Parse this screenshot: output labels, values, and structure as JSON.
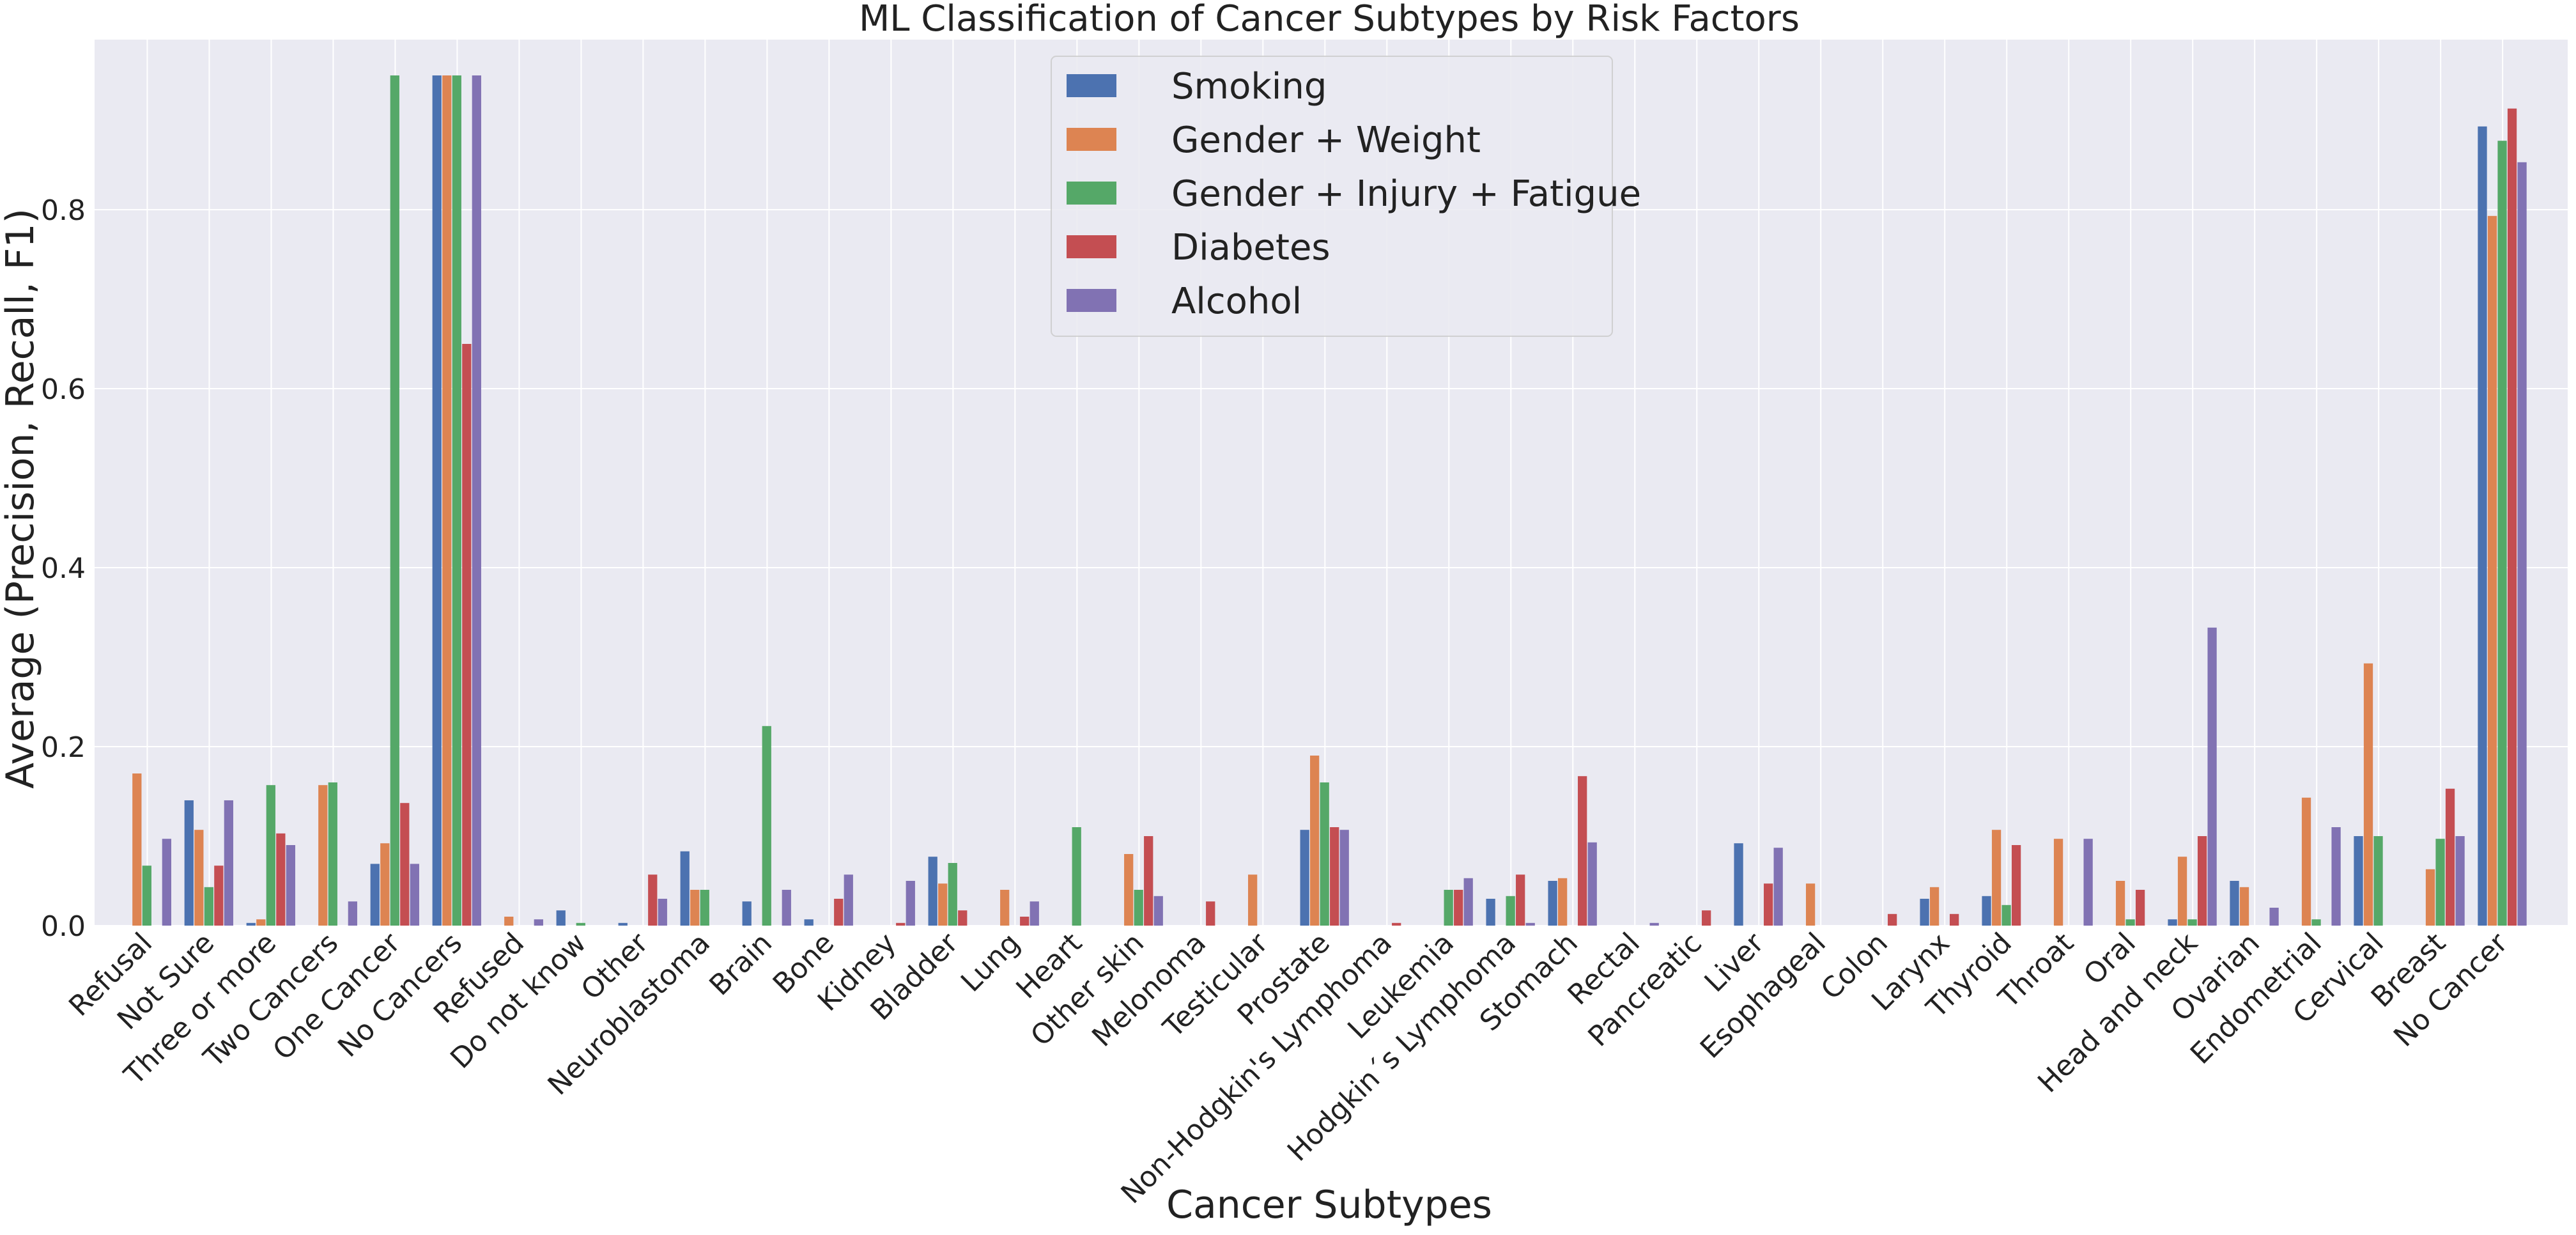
{
  "chart_data": {
    "type": "bar",
    "title": "ML Classification of Cancer Subtypes by Risk Factors",
    "xlabel": "Cancer Subtypes",
    "ylabel": "Average (Precision, Recall, F1)",
    "ylim": [
      0,
      0.99
    ],
    "yticks": [
      "0.0",
      "0.2",
      "0.4",
      "0.6",
      "0.8"
    ],
    "grid": true,
    "legend_position": "top-center",
    "background_color": "#eaeaf2",
    "categories": [
      "Refusal",
      "Not Sure",
      "Three or more",
      "Two Cancers",
      "One Cancer",
      "No Cancers",
      "Refused",
      "Do not know",
      "Other",
      "Neuroblastoma",
      "Brain",
      "Bone",
      "Kidney",
      "Bladder",
      "Lung",
      "Heart",
      "Other skin",
      "Melonoma",
      "Testicular",
      "Prostate",
      "Non-Hodgkin's Lymphoma",
      "Leukemia",
      "Hodgkin´s Lymphoma",
      "Stomach",
      "Rectal",
      "Pancreatic",
      "Liver",
      "Esophageal",
      "Colon",
      "Larynx",
      "Thyroid",
      "Throat",
      "Oral",
      "Head and neck",
      "Ovarian",
      "Endometrial",
      "Cervical",
      "Breast",
      "No Cancer"
    ],
    "series": [
      {
        "name": "Smoking",
        "color": "#4c72b0",
        "values": [
          0,
          0.14,
          0.003,
          0,
          0.069,
          0.95,
          0,
          0.017,
          0.003,
          0.083,
          0.027,
          0.007,
          0,
          0.077,
          0,
          0,
          0,
          0,
          0,
          0.107,
          0,
          0,
          0.03,
          0.05,
          0,
          0,
          0.092,
          0,
          0,
          0.03,
          0.033,
          0,
          0,
          0.007,
          0.05,
          0,
          0.1,
          0,
          0.893
        ]
      },
      {
        "name": "Gender + Weight",
        "color": "#dd8452",
        "values": [
          0.17,
          0.107,
          0.007,
          0.157,
          0.092,
          0.95,
          0.01,
          0,
          0,
          0.04,
          0,
          0,
          0,
          0.047,
          0.04,
          0,
          0.08,
          0,
          0.057,
          0.19,
          0,
          0,
          0,
          0.053,
          0,
          0,
          0,
          0.047,
          0,
          0.043,
          0.107,
          0.097,
          0.05,
          0.077,
          0.043,
          0.143,
          0.293,
          0.063,
          0.793
        ]
      },
      {
        "name": "Gender + Injury + Fatigue",
        "color": "#55a868",
        "values": [
          0.067,
          0.043,
          0.157,
          0.16,
          0.95,
          0.95,
          0,
          0.003,
          0,
          0.04,
          0.223,
          0,
          0,
          0.07,
          0,
          0.11,
          0.04,
          0,
          0,
          0.16,
          0,
          0.04,
          0.033,
          0,
          0,
          0,
          0,
          0,
          0,
          0,
          0.023,
          0,
          0.007,
          0.007,
          0,
          0.007,
          0.1,
          0.097,
          0.877
        ]
      },
      {
        "name": "Diabetes",
        "color": "#c44e52",
        "values": [
          0,
          0.067,
          0.103,
          0,
          0.137,
          0.65,
          0,
          0,
          0.057,
          0,
          0,
          0.03,
          0.003,
          0.017,
          0.01,
          0,
          0.1,
          0.027,
          0,
          0.11,
          0.003,
          0.04,
          0.057,
          0.167,
          0,
          0.017,
          0.047,
          0,
          0.013,
          0.013,
          0.09,
          0,
          0.04,
          0.1,
          0,
          0,
          0,
          0.153,
          0.913
        ]
      },
      {
        "name": "Alcohol",
        "color": "#8172b3",
        "values": [
          0.097,
          0.14,
          0.09,
          0.027,
          0.069,
          0.95,
          0.007,
          0,
          0.03,
          0,
          0.04,
          0.057,
          0.05,
          0,
          0.027,
          0,
          0.033,
          0,
          0,
          0.107,
          0,
          0.053,
          0.003,
          0.093,
          0.003,
          0,
          0.087,
          0,
          0,
          0,
          0,
          0.097,
          0,
          0.333,
          0.02,
          0.11,
          0,
          0.1,
          0.853
        ]
      }
    ]
  }
}
